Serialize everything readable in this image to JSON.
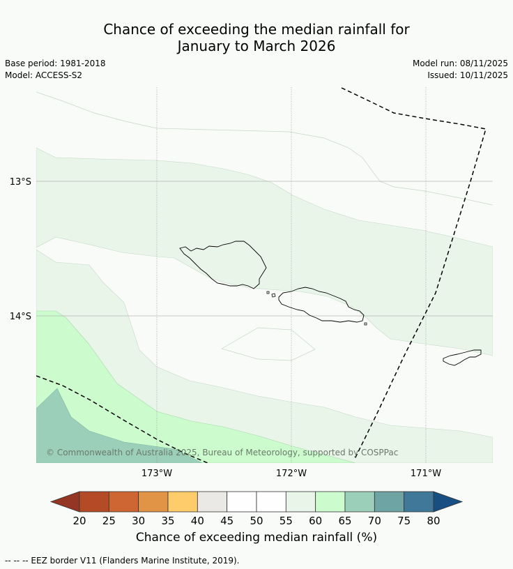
{
  "title": {
    "line1": "Chance of exceeding the median rainfall for",
    "line2": "January to March 2026"
  },
  "meta": {
    "base_period": "Base period: 1981-2018",
    "model": "Model: ACCESS-S2",
    "model_run": "Model run: 08/11/2025",
    "issued": "Issued: 10/11/2025"
  },
  "map": {
    "lon_labels": [
      "173°W",
      "172°W",
      "171°W"
    ],
    "lat_labels": [
      "13°S",
      "14°S"
    ],
    "copyright": "© Commonwealth of Australia 2025, Bureau of Meteorology, supported by COSPPac",
    "colors": {
      "c55_60": "#e9f5e9",
      "c60_65": "#ccfcce",
      "c65_70": "#9ccfb9",
      "c50_55": "#fefefe",
      "eez_border": "#000000"
    }
  },
  "colorbar": {
    "ticks": [
      "20",
      "25",
      "30",
      "35",
      "40",
      "45",
      "50",
      "55",
      "60",
      "65",
      "70",
      "75",
      "80"
    ],
    "colors": [
      "#b24b26",
      "#cd6632",
      "#e19446",
      "#fecc6b",
      "#ebe9e6",
      "#fefefe",
      "#fefefe",
      "#e9f5e9",
      "#ccfcce",
      "#9ccfb9",
      "#6ea4a4",
      "#40789a"
    ],
    "under_color": "#953523",
    "over_color": "#174f82",
    "label": "Chance of exceeding median rainfall (%)"
  },
  "footnote": "--  --  -- EEZ border V11 (Flanders Marine Institute, 2019)."
}
